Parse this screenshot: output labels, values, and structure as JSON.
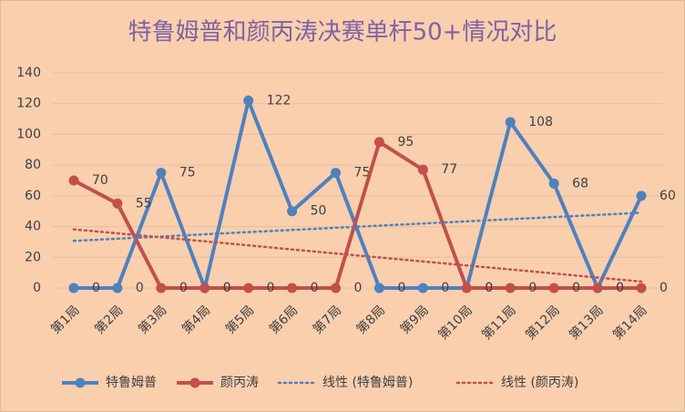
{
  "chart_data": {
    "type": "line",
    "title": "特鲁姆普和颜丙涛决赛单杆50+情况对比",
    "categories": [
      "第1局",
      "第2局",
      "第3局",
      "第4局",
      "第5局",
      "第6局",
      "第7局",
      "第8局",
      "第9局",
      "第10局",
      "第11局",
      "第12局",
      "第13局",
      "第14局"
    ],
    "series": [
      {
        "name": "特鲁姆普",
        "color": "#4f81bd",
        "marker": true,
        "data_labels": true,
        "values": [
          0,
          0,
          75,
          0,
          122,
          50,
          75,
          0,
          0,
          0,
          108,
          68,
          0,
          60
        ]
      },
      {
        "name": "颜丙涛",
        "color": "#c0504d",
        "marker": true,
        "data_labels": true,
        "values": [
          70,
          55,
          0,
          0,
          0,
          0,
          0,
          95,
          77,
          0,
          0,
          0,
          0,
          0
        ]
      },
      {
        "name": "线性 (特鲁姆普)",
        "color": "#4f81bd",
        "style": "dotted",
        "values": [
          30.7,
          32.1,
          33.5,
          35.0,
          36.4,
          37.8,
          39.2,
          40.6,
          42.0,
          43.4,
          44.8,
          46.2,
          47.6,
          49.0
        ]
      },
      {
        "name": "线性 (颜丙涛)",
        "color": "#c0504d",
        "style": "dotted",
        "values": [
          38.2,
          35.6,
          33.0,
          30.4,
          27.8,
          25.1,
          22.5,
          19.9,
          17.3,
          14.7,
          12.1,
          9.5,
          6.8,
          4.2
        ]
      }
    ],
    "ylim": [
      0,
      140
    ],
    "yticks": [
      0,
      20,
      40,
      60,
      80,
      100,
      120,
      140
    ],
    "grid": true,
    "legend": "bottom"
  }
}
